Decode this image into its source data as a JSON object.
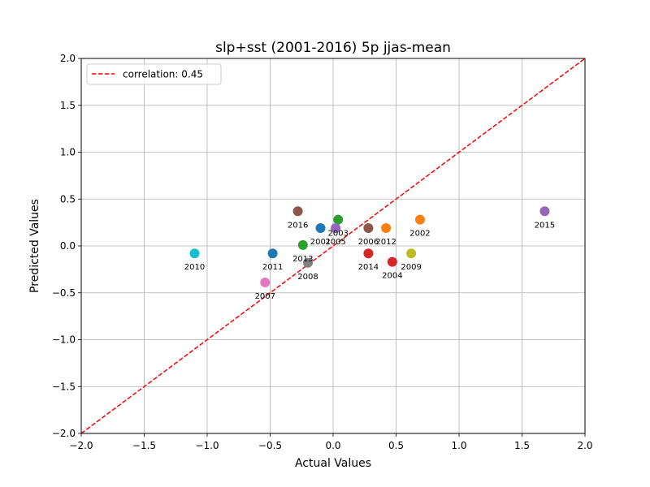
{
  "chart_data": {
    "type": "scatter",
    "title": "slp+sst (2001-2016) 5p jjas-mean",
    "xlabel": "Actual Values",
    "ylabel": "Predicted Values",
    "xlim": [
      -2.0,
      2.0
    ],
    "ylim": [
      -2.0,
      2.0
    ],
    "xticks": [
      "−2.0",
      "−1.5",
      "−1.0",
      "−0.5",
      "0.0",
      "0.5",
      "1.0",
      "1.5",
      "2.0"
    ],
    "yticks": [
      "−2.0",
      "−1.5",
      "−1.0",
      "−0.5",
      "0.0",
      "0.5",
      "1.0",
      "1.5",
      "2.0"
    ],
    "grid": true,
    "legend": {
      "placement": "top-left",
      "entries": [
        "correlation: 0.45"
      ]
    },
    "reference_line": {
      "style": "dashed",
      "color": "#ff0000",
      "from": [
        -2.0,
        -2.0
      ],
      "to": [
        2.0,
        2.0
      ]
    },
    "points": [
      {
        "label": "2001",
        "x": -0.1,
        "y": 0.19,
        "color": "#1f77b4"
      },
      {
        "label": "2002",
        "x": 0.69,
        "y": 0.28,
        "color": "#ff7f0e"
      },
      {
        "label": "2003",
        "x": 0.04,
        "y": 0.28,
        "color": "#2ca02c"
      },
      {
        "label": "2004",
        "x": 0.47,
        "y": -0.17,
        "color": "#d62728"
      },
      {
        "label": "2005",
        "x": 0.02,
        "y": 0.19,
        "color": "#9467bd"
      },
      {
        "label": "2006",
        "x": 0.28,
        "y": 0.19,
        "color": "#8c564b"
      },
      {
        "label": "2007",
        "x": -0.54,
        "y": -0.39,
        "color": "#e377c2"
      },
      {
        "label": "2008",
        "x": -0.2,
        "y": -0.18,
        "color": "#7f7f7f"
      },
      {
        "label": "2009",
        "x": 0.62,
        "y": -0.08,
        "color": "#bcbd22"
      },
      {
        "label": "2010",
        "x": -1.1,
        "y": -0.08,
        "color": "#17becf"
      },
      {
        "label": "2011",
        "x": -0.48,
        "y": -0.08,
        "color": "#1f77b4"
      },
      {
        "label": "2012",
        "x": 0.42,
        "y": 0.19,
        "color": "#ff7f0e"
      },
      {
        "label": "2013",
        "x": -0.24,
        "y": 0.01,
        "color": "#2ca02c"
      },
      {
        "label": "2014",
        "x": 0.28,
        "y": -0.08,
        "color": "#d62728"
      },
      {
        "label": "2015",
        "x": 1.68,
        "y": 0.37,
        "color": "#9467bd"
      },
      {
        "label": "2016",
        "x": -0.28,
        "y": 0.37,
        "color": "#8c564b"
      }
    ]
  }
}
